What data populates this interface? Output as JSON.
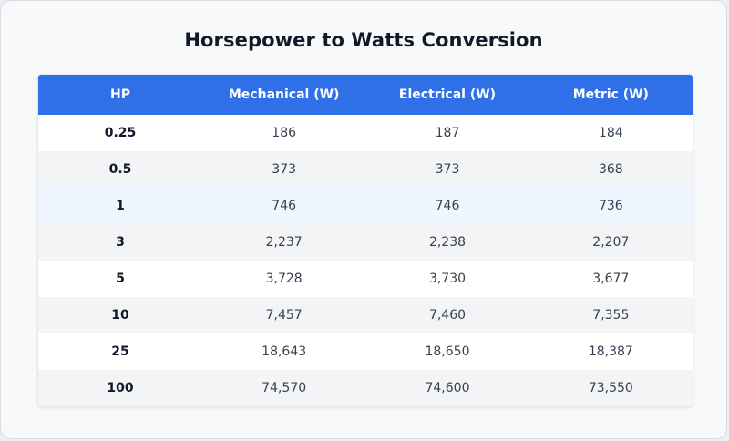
{
  "title": "Horsepower to Watts Conversion",
  "colors": {
    "header_bg": "#2f6fe8",
    "row_alt": "#f3f4f6",
    "row_highlight": "#eff6ff"
  },
  "table": {
    "headers": [
      "HP",
      "Mechanical (W)",
      "Electrical (W)",
      "Metric (W)"
    ],
    "rows": [
      [
        "0.25",
        "186",
        "187",
        "184"
      ],
      [
        "0.5",
        "373",
        "373",
        "368"
      ],
      [
        "1",
        "746",
        "746",
        "736"
      ],
      [
        "3",
        "2,237",
        "2,238",
        "2,207"
      ],
      [
        "5",
        "3,728",
        "3,730",
        "3,677"
      ],
      [
        "10",
        "7,457",
        "7,460",
        "7,355"
      ],
      [
        "25",
        "18,643",
        "18,650",
        "18,387"
      ],
      [
        "100",
        "74,570",
        "74,600",
        "73,550"
      ]
    ]
  }
}
